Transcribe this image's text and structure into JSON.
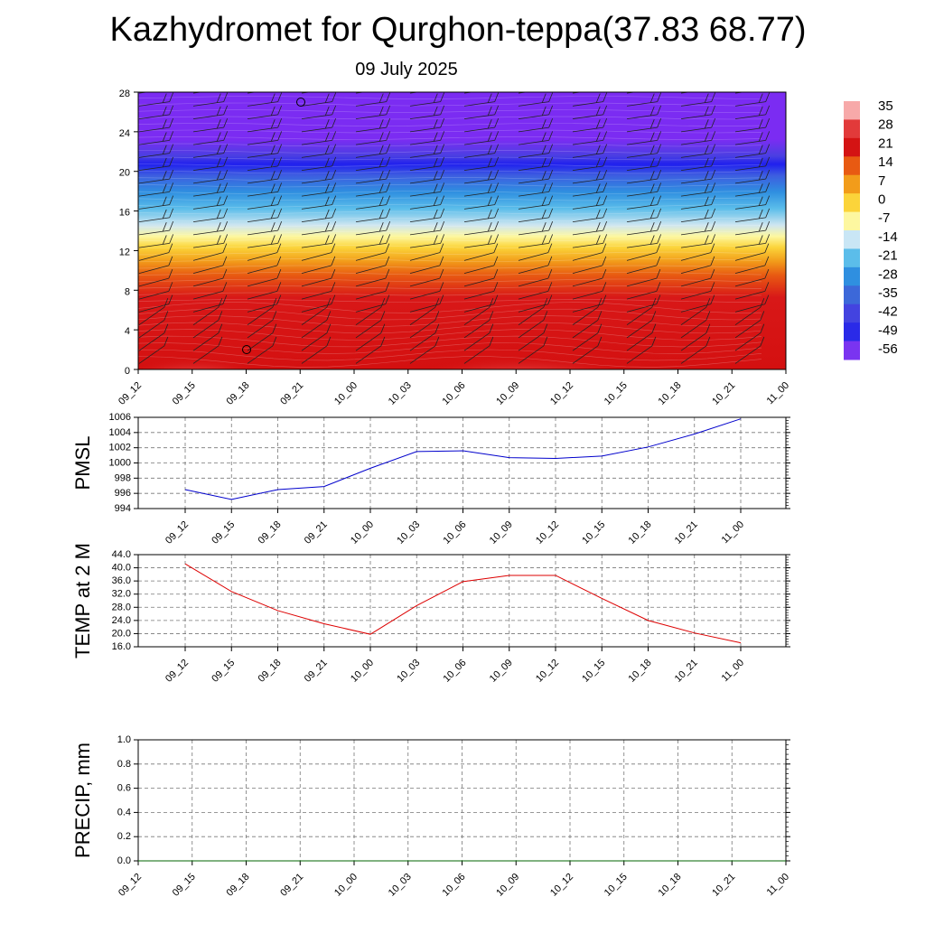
{
  "title": "Kazhydromet for Qurghon-teppa(37.83 68.77)",
  "subtitle": "09 July 2025",
  "time_labels": [
    "09_12",
    "09_15",
    "09_18",
    "09_21",
    "10_00",
    "10_03",
    "10_06",
    "10_09",
    "10_12",
    "10_15",
    "10_18",
    "10_21",
    "11_00"
  ],
  "chart_data": [
    {
      "type": "heatmap",
      "title": "",
      "xlabel": "",
      "ylabel": "",
      "y_ticks": [
        0,
        4,
        8,
        12,
        16,
        20,
        24,
        28
      ],
      "ylim": [
        0,
        28
      ],
      "colorbar": {
        "labels": [
          "35",
          "28",
          "21",
          "14",
          "7",
          "0",
          "-7",
          "-14",
          "-21",
          "-28",
          "-35",
          "-42",
          "-49",
          "-56"
        ],
        "colors": [
          "#f7a9a9",
          "#e23a3a",
          "#d41313",
          "#e85a12",
          "#f29c1a",
          "#fbd43a",
          "#fdf7a0",
          "#c9e6f5",
          "#5bbdea",
          "#2f8fe0",
          "#3c68d9",
          "#4343e0",
          "#2a2ae8",
          "#7a34f0"
        ]
      },
      "wind_barbs": true
    },
    {
      "type": "line",
      "ylabel": "PMSL",
      "ylim": [
        994,
        1006
      ],
      "y_ticks": [
        "994",
        "996",
        "998",
        "1000",
        "1002",
        "1004",
        "1006"
      ],
      "color": "#0000cc",
      "values": [
        996.5,
        995.2,
        996.5,
        996.9,
        999.3,
        1001.5,
        1001.6,
        1000.7,
        1000.6,
        1000.9,
        1002.1,
        1003.8,
        1005.8
      ]
    },
    {
      "type": "line",
      "ylabel": "TEMP at 2 M",
      "ylim": [
        16,
        44
      ],
      "y_ticks": [
        "16.0",
        "20.0",
        "24.0",
        "28.0",
        "32.0",
        "36.0",
        "40.0",
        "44.0"
      ],
      "color": "#dd0000",
      "values": [
        41.2,
        32.8,
        27.0,
        23.0,
        19.8,
        28.5,
        35.8,
        37.7,
        37.7,
        30.7,
        24.0,
        20.2,
        17.2
      ]
    },
    {
      "type": "line",
      "ylabel": "PRECIP, mm",
      "ylim": [
        0,
        1
      ],
      "y_ticks": [
        "0.0",
        "0.2",
        "0.4",
        "0.6",
        "0.8",
        "1.0"
      ],
      "color": "#006600",
      "values": [
        0,
        0,
        0,
        0,
        0,
        0,
        0,
        0,
        0,
        0,
        0,
        0,
        0
      ]
    }
  ]
}
